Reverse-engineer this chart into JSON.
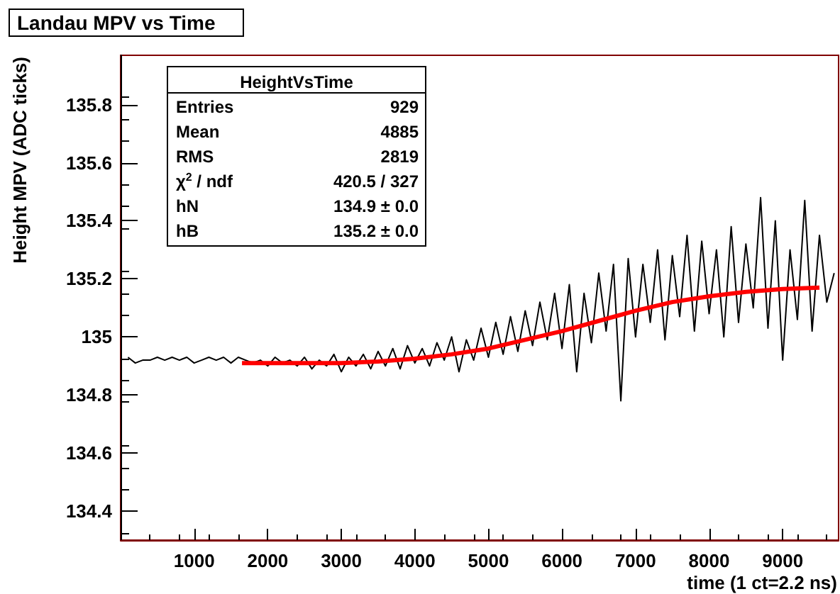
{
  "chart_data": {
    "type": "line",
    "title": "Landau MPV vs Time",
    "xlabel": "time (1 ct=2.2 ns)",
    "ylabel": "Height MPV (ADC ticks)",
    "annotations": [
      "HeightVsTime",
      "Entries\t929",
      "Mean\t4885",
      "RMS\t2819",
      "χ$^{2}$ / ndf\t420.5 / 327",
      "hN\t134.9 ± 0.0",
      "hB\t135.2 ± 0.0"
    ],
    "xlim": [
      0,
      9760
    ],
    "xticks": [
      1000,
      2000,
      3000,
      4000,
      5000,
      6000,
      7000,
      8000,
      9000
    ],
    "ylim": [
      134.3,
      135.97
    ],
    "yticks": [
      134.4,
      134.6,
      134.8,
      135,
      135.2,
      135.4,
      135.6,
      135.8
    ],
    "grid": false,
    "marker": "none",
    "line_style": "solid",
    "series": [
      {
        "color": "#000000",
        "x": [
          100,
          200,
          300,
          400,
          500,
          600,
          700,
          800,
          900,
          1000,
          1100,
          1200,
          1300,
          1400,
          1500,
          1600,
          1700,
          1800,
          1900,
          2000,
          2100,
          2200,
          2300,
          2400,
          2500,
          2600,
          2700,
          2800,
          2900,
          3000,
          3100,
          3200,
          3300,
          3400,
          3500,
          3600,
          3700,
          3800,
          3900,
          4000,
          4100,
          4200,
          4300,
          4400,
          4500,
          4600,
          4700,
          4800,
          4900,
          5000,
          5100,
          5200,
          5300,
          5400,
          5500,
          5600,
          5700,
          5800,
          5900,
          6000,
          6100,
          6200,
          6300,
          6400,
          6500,
          6600,
          6700,
          6800,
          6900,
          7000,
          7100,
          7200,
          7300,
          7400,
          7500,
          7600,
          7700,
          7800,
          7900,
          8000,
          8100,
          8200,
          8300,
          8400,
          8500,
          8600,
          8700,
          8800,
          8900,
          9000,
          9100,
          9200,
          9300,
          9400,
          9500,
          9600,
          9700
        ],
        "values": [
          134.93,
          134.91,
          134.92,
          134.92,
          134.93,
          134.92,
          134.93,
          134.92,
          134.93,
          134.91,
          134.92,
          134.93,
          134.92,
          134.93,
          134.91,
          134.93,
          134.92,
          134.91,
          134.92,
          134.9,
          134.93,
          134.91,
          134.92,
          134.9,
          134.93,
          134.89,
          134.92,
          134.9,
          134.94,
          134.88,
          134.93,
          134.9,
          134.94,
          134.89,
          134.95,
          134.9,
          134.96,
          134.89,
          134.97,
          134.91,
          134.96,
          134.9,
          134.98,
          134.92,
          135.0,
          134.88,
          134.99,
          134.92,
          135.03,
          134.93,
          135.05,
          134.94,
          135.07,
          134.95,
          135.09,
          134.97,
          135.12,
          134.99,
          135.15,
          134.96,
          135.18,
          134.88,
          135.15,
          134.98,
          135.22,
          135.02,
          135.25,
          134.78,
          135.27,
          135.0,
          135.25,
          135.05,
          135.3,
          134.99,
          135.28,
          135.07,
          135.35,
          135.02,
          135.33,
          135.08,
          135.3,
          135.0,
          135.38,
          135.05,
          135.32,
          135.1,
          135.48,
          135.03,
          135.4,
          134.92,
          135.3,
          135.06,
          135.47,
          135.02,
          135.35,
          135.12,
          135.22
        ]
      },
      {
        "color": "#ff0000",
        "x": [
          1650,
          2000,
          2500,
          3000,
          3500,
          4000,
          4500,
          5000,
          5500,
          6000,
          6500,
          7000,
          7500,
          8000,
          8500,
          9000,
          9500
        ],
        "values": [
          134.91,
          134.91,
          134.91,
          134.91,
          134.915,
          134.925,
          134.94,
          134.96,
          134.99,
          135.02,
          135.055,
          135.09,
          135.12,
          135.14,
          135.155,
          135.165,
          135.17
        ]
      }
    ]
  }
}
